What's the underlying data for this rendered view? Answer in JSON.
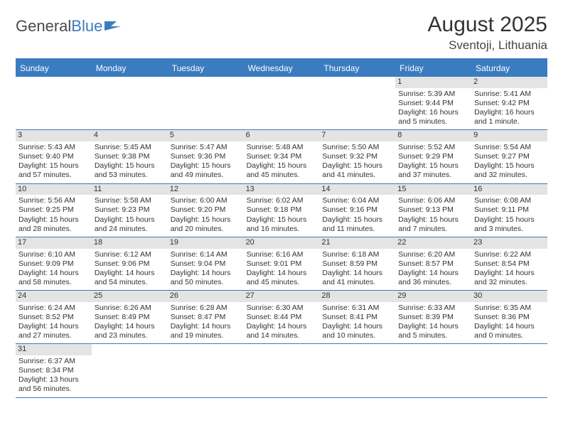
{
  "logo": {
    "text1": "General",
    "text2": "Blue"
  },
  "title": "August 2025",
  "subtitle": "Sventoji, Lithuania",
  "colors": {
    "header_bg": "#3b7bbf",
    "header_fg": "#ffffff",
    "daynum_bg": "#e4e4e4",
    "border": "#3b7bbf",
    "text": "#333333",
    "page_bg": "#ffffff"
  },
  "day_headers": [
    "Sunday",
    "Monday",
    "Tuesday",
    "Wednesday",
    "Thursday",
    "Friday",
    "Saturday"
  ],
  "grid": [
    [
      {
        "blank": true
      },
      {
        "blank": true
      },
      {
        "blank": true
      },
      {
        "blank": true
      },
      {
        "blank": true
      },
      {
        "day": 1,
        "sunrise": "5:39 AM",
        "sunset": "9:44 PM",
        "daylight": "16 hours and 5 minutes."
      },
      {
        "day": 2,
        "sunrise": "5:41 AM",
        "sunset": "9:42 PM",
        "daylight": "16 hours and 1 minute."
      }
    ],
    [
      {
        "day": 3,
        "sunrise": "5:43 AM",
        "sunset": "9:40 PM",
        "daylight": "15 hours and 57 minutes."
      },
      {
        "day": 4,
        "sunrise": "5:45 AM",
        "sunset": "9:38 PM",
        "daylight": "15 hours and 53 minutes."
      },
      {
        "day": 5,
        "sunrise": "5:47 AM",
        "sunset": "9:36 PM",
        "daylight": "15 hours and 49 minutes."
      },
      {
        "day": 6,
        "sunrise": "5:48 AM",
        "sunset": "9:34 PM",
        "daylight": "15 hours and 45 minutes."
      },
      {
        "day": 7,
        "sunrise": "5:50 AM",
        "sunset": "9:32 PM",
        "daylight": "15 hours and 41 minutes."
      },
      {
        "day": 8,
        "sunrise": "5:52 AM",
        "sunset": "9:29 PM",
        "daylight": "15 hours and 37 minutes."
      },
      {
        "day": 9,
        "sunrise": "5:54 AM",
        "sunset": "9:27 PM",
        "daylight": "15 hours and 32 minutes."
      }
    ],
    [
      {
        "day": 10,
        "sunrise": "5:56 AM",
        "sunset": "9:25 PM",
        "daylight": "15 hours and 28 minutes."
      },
      {
        "day": 11,
        "sunrise": "5:58 AM",
        "sunset": "9:23 PM",
        "daylight": "15 hours and 24 minutes."
      },
      {
        "day": 12,
        "sunrise": "6:00 AM",
        "sunset": "9:20 PM",
        "daylight": "15 hours and 20 minutes."
      },
      {
        "day": 13,
        "sunrise": "6:02 AM",
        "sunset": "9:18 PM",
        "daylight": "15 hours and 16 minutes."
      },
      {
        "day": 14,
        "sunrise": "6:04 AM",
        "sunset": "9:16 PM",
        "daylight": "15 hours and 11 minutes."
      },
      {
        "day": 15,
        "sunrise": "6:06 AM",
        "sunset": "9:13 PM",
        "daylight": "15 hours and 7 minutes."
      },
      {
        "day": 16,
        "sunrise": "6:08 AM",
        "sunset": "9:11 PM",
        "daylight": "15 hours and 3 minutes."
      }
    ],
    [
      {
        "day": 17,
        "sunrise": "6:10 AM",
        "sunset": "9:09 PM",
        "daylight": "14 hours and 58 minutes."
      },
      {
        "day": 18,
        "sunrise": "6:12 AM",
        "sunset": "9:06 PM",
        "daylight": "14 hours and 54 minutes."
      },
      {
        "day": 19,
        "sunrise": "6:14 AM",
        "sunset": "9:04 PM",
        "daylight": "14 hours and 50 minutes."
      },
      {
        "day": 20,
        "sunrise": "6:16 AM",
        "sunset": "9:01 PM",
        "daylight": "14 hours and 45 minutes."
      },
      {
        "day": 21,
        "sunrise": "6:18 AM",
        "sunset": "8:59 PM",
        "daylight": "14 hours and 41 minutes."
      },
      {
        "day": 22,
        "sunrise": "6:20 AM",
        "sunset": "8:57 PM",
        "daylight": "14 hours and 36 minutes."
      },
      {
        "day": 23,
        "sunrise": "6:22 AM",
        "sunset": "8:54 PM",
        "daylight": "14 hours and 32 minutes."
      }
    ],
    [
      {
        "day": 24,
        "sunrise": "6:24 AM",
        "sunset": "8:52 PM",
        "daylight": "14 hours and 27 minutes."
      },
      {
        "day": 25,
        "sunrise": "6:26 AM",
        "sunset": "8:49 PM",
        "daylight": "14 hours and 23 minutes."
      },
      {
        "day": 26,
        "sunrise": "6:28 AM",
        "sunset": "8:47 PM",
        "daylight": "14 hours and 19 minutes."
      },
      {
        "day": 27,
        "sunrise": "6:30 AM",
        "sunset": "8:44 PM",
        "daylight": "14 hours and 14 minutes."
      },
      {
        "day": 28,
        "sunrise": "6:31 AM",
        "sunset": "8:41 PM",
        "daylight": "14 hours and 10 minutes."
      },
      {
        "day": 29,
        "sunrise": "6:33 AM",
        "sunset": "8:39 PM",
        "daylight": "14 hours and 5 minutes."
      },
      {
        "day": 30,
        "sunrise": "6:35 AM",
        "sunset": "8:36 PM",
        "daylight": "14 hours and 0 minutes."
      }
    ],
    [
      {
        "day": 31,
        "sunrise": "6:37 AM",
        "sunset": "8:34 PM",
        "daylight": "13 hours and 56 minutes."
      },
      {
        "blank": true
      },
      {
        "blank": true
      },
      {
        "blank": true
      },
      {
        "blank": true
      },
      {
        "blank": true
      },
      {
        "blank": true
      }
    ]
  ],
  "labels": {
    "sunrise": "Sunrise:",
    "sunset": "Sunset:",
    "daylight": "Daylight:"
  }
}
